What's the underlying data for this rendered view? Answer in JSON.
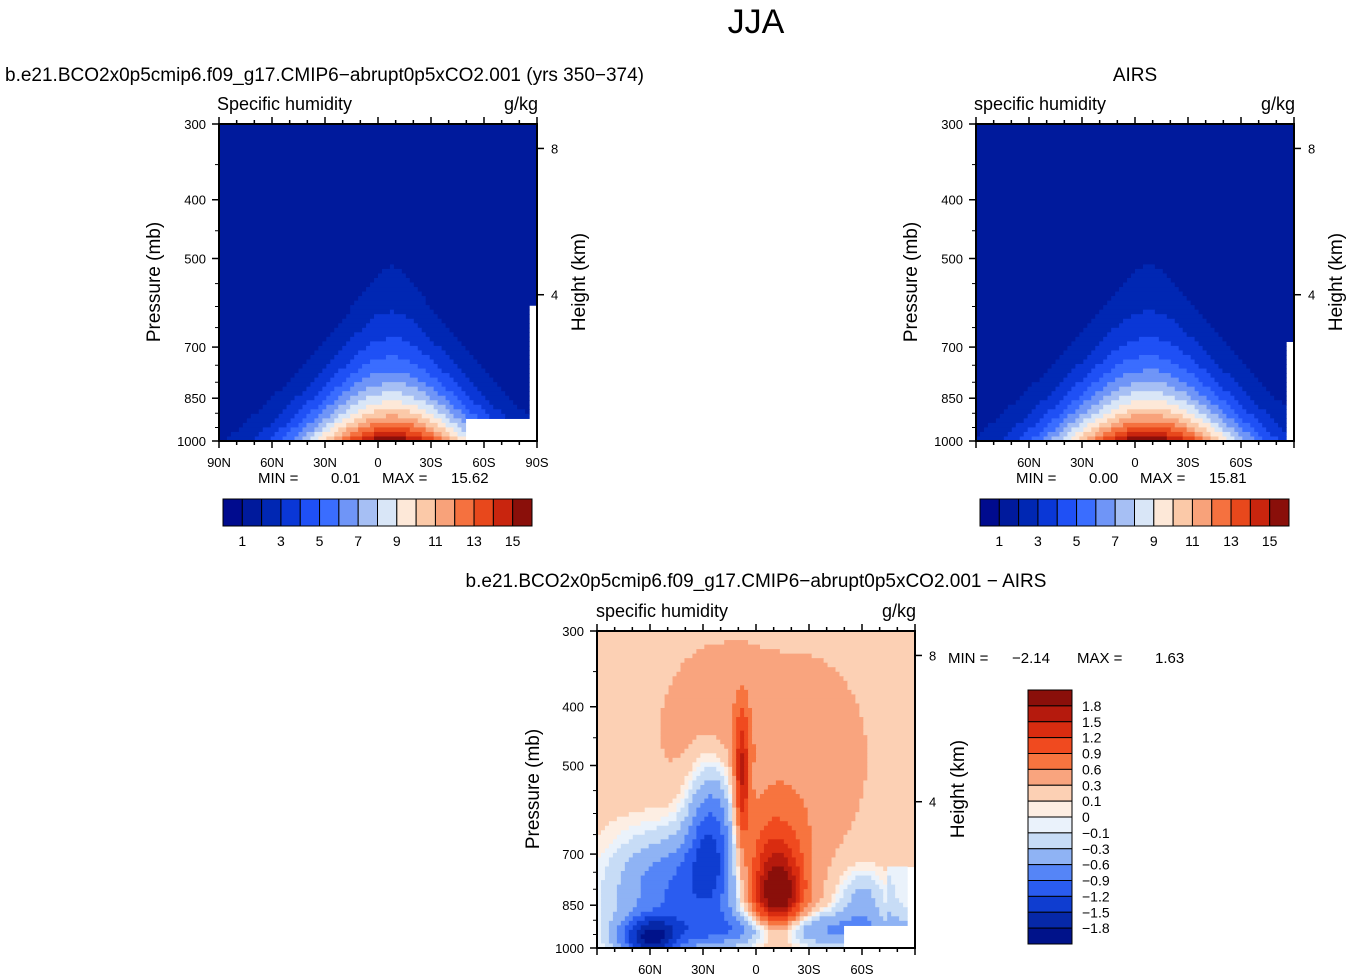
{
  "figure": {
    "title": "JJA"
  },
  "chart_data": [
    {
      "type": "heatmap",
      "id": "model",
      "title": "b.e21.BCO2x0p5cmip6.f09_g17.CMIP6−abrupt0p5xCO2.001 (yrs 350−374)",
      "left_string": "Specific humidity",
      "units": "g/kg",
      "ylabel": "Pressure (mb)",
      "right_label": "Height (km)",
      "x_ticks": [
        "90N",
        "60N",
        "30N",
        "0",
        "30S",
        "60S",
        "90S"
      ],
      "x_tick_lat": [
        90,
        60,
        30,
        0,
        -30,
        -60,
        -90
      ],
      "xlim": [
        90,
        -90
      ],
      "y_ticks": [
        300,
        400,
        500,
        700,
        850,
        1000
      ],
      "ylim": [
        1000,
        300
      ],
      "y_scale": "log",
      "height_ticks": [
        8,
        4
      ],
      "stats": {
        "min_label": "MIN =",
        "min_value": "0.01",
        "max_label": "MAX =",
        "max_value": "15.62"
      },
      "field": {
        "peak": 15.6,
        "peak_lat": -8,
        "top_mb": 380,
        "base_halfwidth_deg": 64,
        "mask_lat": -50,
        "mask_mb": 925
      },
      "colorbar": {
        "levels": [
          1,
          2,
          3,
          4,
          5,
          6,
          7,
          8,
          9,
          10,
          11,
          12,
          13,
          14,
          15
        ],
        "labels": [
          "1",
          "3",
          "5",
          "7",
          "9",
          "11",
          "13",
          "15"
        ],
        "colors": [
          "#000b8e",
          "#001a9c",
          "#0027b3",
          "#0a37d6",
          "#1f50f5",
          "#3a6dff",
          "#6f95f7",
          "#a6bff4",
          "#d9e6f7",
          "#fde8d8",
          "#fbc9a8",
          "#f8a27a",
          "#f5713f",
          "#e8481c",
          "#c9250e",
          "#8a0f0a"
        ]
      }
    },
    {
      "type": "heatmap",
      "id": "obs",
      "title": "AIRS",
      "left_string": "specific humidity",
      "units": "g/kg",
      "ylabel": "Pressure (mb)",
      "right_label": "Height (km)",
      "x_ticks": [
        "60N",
        "30N",
        "0",
        "30S",
        "60S"
      ],
      "x_tick_lat": [
        60,
        30,
        0,
        -30,
        -60
      ],
      "xlim": [
        90,
        -90
      ],
      "y_ticks": [
        300,
        400,
        500,
        700,
        850,
        1000
      ],
      "ylim": [
        1000,
        300
      ],
      "y_scale": "log",
      "height_ticks": [
        8,
        4
      ],
      "stats": {
        "min_label": "MIN =",
        "min_value": "0.00",
        "max_label": "MAX =",
        "max_value": "15.81"
      },
      "field": {
        "peak": 15.8,
        "peak_lat": -8,
        "top_mb": 350,
        "base_halfwidth_deg": 68
      },
      "colorbar": {
        "levels": [
          1,
          2,
          3,
          4,
          5,
          6,
          7,
          8,
          9,
          10,
          11,
          12,
          13,
          14,
          15
        ],
        "labels": [
          "1",
          "3",
          "5",
          "7",
          "9",
          "11",
          "13",
          "15"
        ],
        "colors": [
          "#000b8e",
          "#001a9c",
          "#0027b3",
          "#0a37d6",
          "#1f50f5",
          "#3a6dff",
          "#6f95f7",
          "#a6bff4",
          "#d9e6f7",
          "#fde8d8",
          "#fbc9a8",
          "#f8a27a",
          "#f5713f",
          "#e8481c",
          "#c9250e",
          "#8a0f0a"
        ]
      }
    },
    {
      "type": "heatmap",
      "id": "diff",
      "title": "b.e21.BCO2x0p5cmip6.f09_g17.CMIP6−abrupt0p5xCO2.001 − AIRS",
      "left_string": "specific humidity",
      "units": "g/kg",
      "ylabel": "Pressure (mb)",
      "right_label": "Height (km)",
      "x_ticks": [
        "60N",
        "30N",
        "0",
        "30S",
        "60S"
      ],
      "x_tick_lat": [
        60,
        30,
        0,
        -30,
        -60
      ],
      "xlim": [
        90,
        -90
      ],
      "y_ticks": [
        300,
        400,
        500,
        700,
        850,
        1000
      ],
      "ylim": [
        1000,
        300
      ],
      "y_scale": "log",
      "height_ticks": [
        8,
        4
      ],
      "stats": {
        "min_label": "MIN =",
        "min_value": "−2.14",
        "max_label": "MAX =",
        "max_value": "1.63"
      },
      "colorbar": {
        "labels": [
          "1.8",
          "1.5",
          "1.2",
          "0.9",
          "0.6",
          "0.3",
          "0.1",
          "0",
          "−0.1",
          "−0.3",
          "−0.6",
          "−0.9",
          "−1.2",
          "−1.5",
          "−1.8"
        ],
        "colors": [
          "#8a0f0a",
          "#b51a0d",
          "#d92c10",
          "#f04a1f",
          "#f7743f",
          "#f9a47e",
          "#fcd0b4",
          "#fdeee3",
          "#eaf2fb",
          "#c7dcf6",
          "#8fb3f4",
          "#5585f7",
          "#2a5cf0",
          "#0f3dd0",
          "#0628a8",
          "#00128a"
        ]
      }
    }
  ]
}
